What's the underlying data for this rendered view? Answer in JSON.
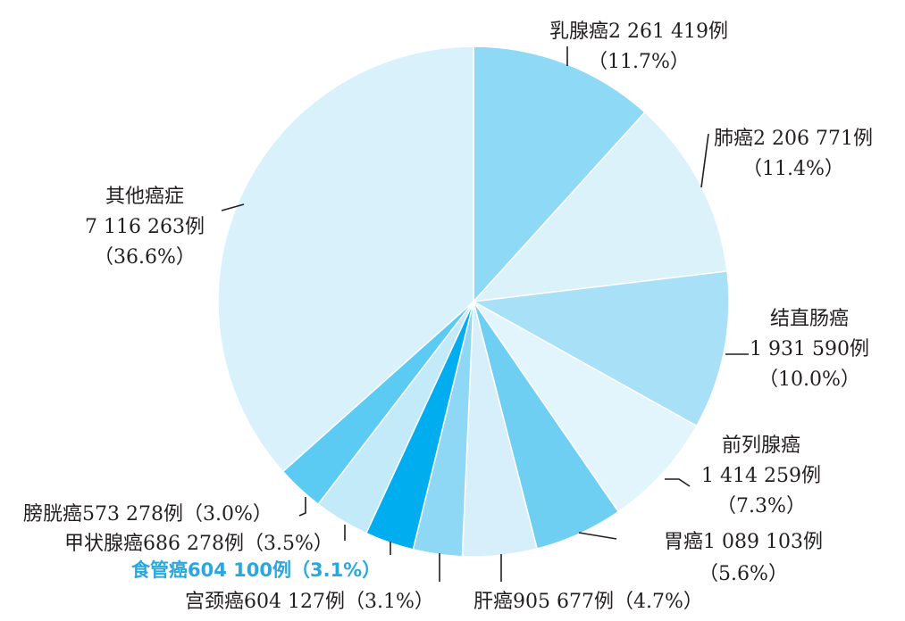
{
  "chart_data": {
    "type": "pie",
    "title": "",
    "start_angle_deg": 0,
    "direction": "clockwise",
    "slices": [
      {
        "name": "乳腺癌",
        "cases": "2 261 419例",
        "percent": 11.7,
        "color": "#8ed9f6",
        "lines": [
          "乳腺癌2 261 419例",
          "（11.7%）"
        ]
      },
      {
        "name": "肺癌",
        "cases": "2 206 771例",
        "percent": 11.4,
        "color": "#dcf2fb",
        "lines": [
          "肺癌2 206 771例",
          "（11.4%）"
        ]
      },
      {
        "name": "结直肠癌",
        "cases": "1 931 590例",
        "percent": 10.0,
        "color": "#a8e1f7",
        "lines": [
          "结直肠癌",
          "1 931 590例",
          "（10.0%）"
        ]
      },
      {
        "name": "前列腺癌",
        "cases": "1 414 259例",
        "percent": 7.3,
        "color": "#e3f5fc",
        "lines": [
          "前列腺癌",
          "1 414 259例",
          "（7.3%）"
        ]
      },
      {
        "name": "胃癌",
        "cases": "1 089 103例",
        "percent": 5.6,
        "color": "#6fcff3",
        "lines": [
          "胃癌1 089 103例",
          "（5.6%）"
        ]
      },
      {
        "name": "肝癌",
        "cases": "905 677例",
        "percent": 4.7,
        "color": "#d6effa",
        "lines": [
          "肝癌905 677例（4.7%）"
        ]
      },
      {
        "name": "宫颈癌",
        "cases": "604 127例",
        "percent": 3.1,
        "color": "#8fd8f5",
        "lines": [
          "宫颈癌604 127例（3.1%）"
        ]
      },
      {
        "name": "食管癌",
        "cases": "604 100例",
        "percent": 3.1,
        "color": "#00aeef",
        "highlight": true,
        "lines": [
          "食管癌604 100例（3.1%）"
        ]
      },
      {
        "name": "甲状腺癌",
        "cases": "686 278例",
        "percent": 3.5,
        "color": "#c2eaf9",
        "lines": [
          "甲状腺癌686 278例（3.5%）"
        ]
      },
      {
        "name": "膀胱癌",
        "cases": "573 278例",
        "percent": 3.0,
        "color": "#5ccbf3",
        "lines": [
          "膀胱癌573 278例（3.0%）"
        ]
      },
      {
        "name": "其他癌症",
        "cases": "7 116 263例",
        "percent": 36.6,
        "color": "#d9f1fb",
        "lines": [
          "其他癌症",
          "7 116 263例",
          "（36.6%）"
        ]
      }
    ]
  }
}
